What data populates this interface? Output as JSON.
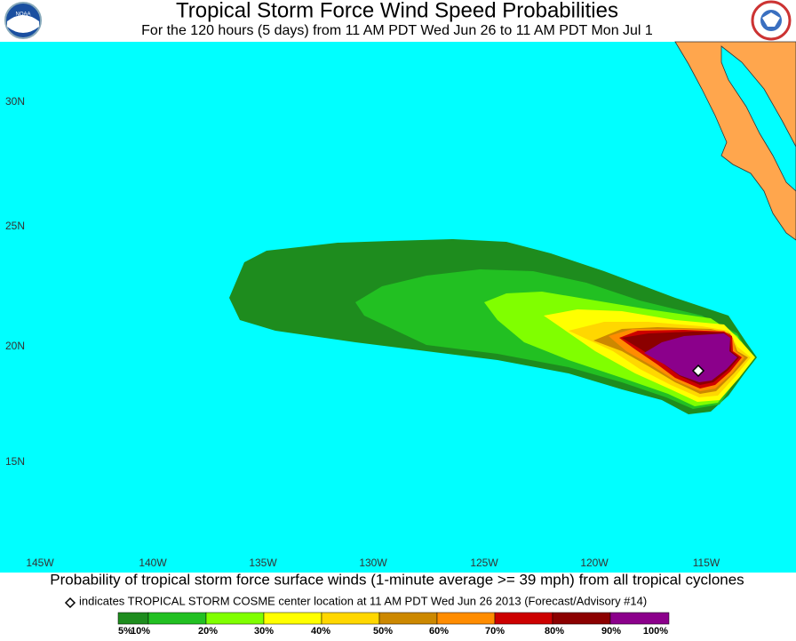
{
  "header": {
    "title": "Tropical Storm Force Wind Speed Probabilities",
    "subtitle": "For the 120 hours (5 days) from 11 AM PDT Wed Jun 26 to 11 AM PDT Mon Jul 1"
  },
  "map": {
    "lat_labels": [
      "30N",
      "25N",
      "20N",
      "15N"
    ],
    "lon_labels": [
      "145W",
      "140W",
      "135W",
      "130W",
      "125W",
      "120W",
      "115W"
    ]
  },
  "footer": {
    "caption": "Probability of tropical storm force surface winds (1-minute average >= 39 mph) from all tropical cyclones",
    "note": "indicates TROPICAL STORM COSME center location at 11 AM PDT Wed Jun 26 2013 (Forecast/Advisory #14)",
    "legend": {
      "labels": [
        "5%",
        "10%",
        "20%",
        "30%",
        "40%",
        "50%",
        "60%",
        "70%",
        "80%",
        "90%",
        "100%"
      ],
      "colors": [
        "#1e8c1e",
        "#22c022",
        "#80ff00",
        "#ffff00",
        "#ffd700",
        "#cc8800",
        "#ff8c00",
        "#cc0000",
        "#8b0000",
        "#8b008b"
      ]
    }
  }
}
